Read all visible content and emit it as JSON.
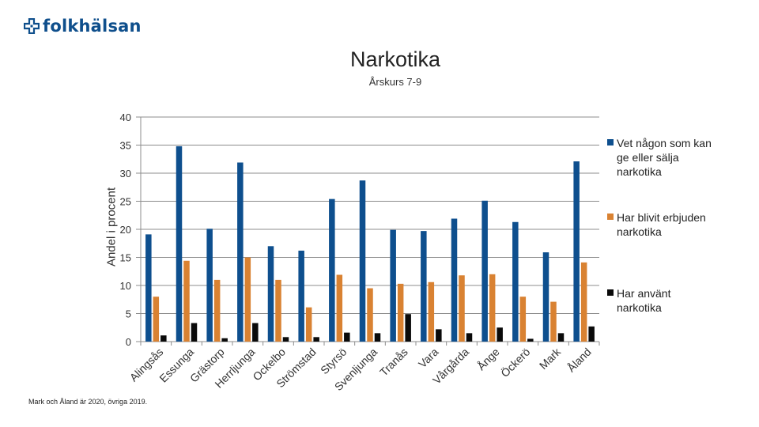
{
  "brand": {
    "name": "folkhälsan",
    "logo_icon": "folkhalsan-cross-icon",
    "color": "#0f4f8c"
  },
  "chart_data": {
    "type": "bar",
    "title": "Narkotika",
    "subtitle": "Årskurs 7-9",
    "ylabel": "Andel i procent",
    "xlabel": "",
    "ylim": [
      0,
      40
    ],
    "yticks": [
      0,
      5,
      10,
      15,
      20,
      25,
      30,
      35,
      40
    ],
    "grid": true,
    "legend_position": "right",
    "categories": [
      "Alingsås",
      "Essunga",
      "Grästorp",
      "Herrljunga",
      "Ockelbo",
      "Strömstad",
      "Styrsö",
      "Svenljunga",
      "Tranås",
      "Vara",
      "Vårgårda",
      "Ånge",
      "Öckerö",
      "Mark",
      "Åland"
    ],
    "series": [
      {
        "name": "Vet någon som kan ge eller sälja narkotika",
        "color": "#0e4f8e",
        "values": [
          19.1,
          34.8,
          20.1,
          31.9,
          17.0,
          16.2,
          25.4,
          28.7,
          19.9,
          19.7,
          21.9,
          25.1,
          21.3,
          15.9,
          32.1
        ]
      },
      {
        "name": "Har blivit erbjuden narkotika",
        "color": "#d98232",
        "values": [
          8.0,
          14.4,
          11.0,
          15.0,
          11.0,
          6.1,
          11.9,
          9.5,
          10.3,
          10.6,
          11.8,
          12.0,
          8.0,
          7.1,
          14.1
        ]
      },
      {
        "name": "Har använt narkotika",
        "color": "#0a0a0a",
        "values": [
          1.1,
          3.3,
          0.6,
          3.3,
          0.8,
          0.8,
          1.6,
          1.5,
          4.9,
          2.2,
          1.5,
          2.5,
          0.5,
          1.5,
          2.7
        ]
      }
    ]
  },
  "footnote": "Mark och Åland är 2020, övriga 2019."
}
